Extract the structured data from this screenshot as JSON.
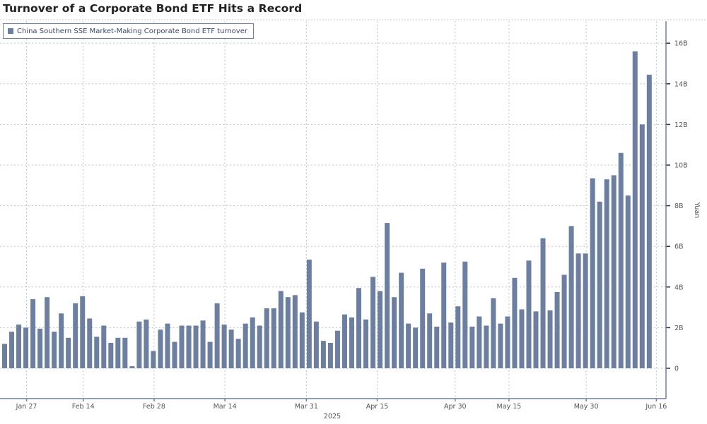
{
  "chart_data": {
    "type": "bar",
    "title": "Turnover of a Corporate Bond ETF Hits a Record",
    "legend": [
      "China Southern SSE Market-Making Corporate Bond ETF turnover"
    ],
    "legend_placement": "top-left",
    "ylabel": "Yuan",
    "xlabel": "2025",
    "y_axis_side": "right",
    "ylim": [
      -1.5,
      17.1
    ],
    "y_ticks": [
      0,
      2,
      4,
      6,
      8,
      10,
      12,
      14,
      16
    ],
    "y_tick_labels": [
      "0",
      "2B",
      "4B",
      "6B",
      "8B",
      "10B",
      "12B",
      "14B",
      "16B"
    ],
    "x_tick_labels": [
      "Jan 27",
      "Feb 14",
      "Feb 28",
      "Mar 14",
      "Mar 31",
      "Apr 15",
      "Apr 30",
      "May 15",
      "May 30",
      "Jun 16"
    ],
    "grid": true,
    "bar_color": "#6d7fa0",
    "unit": "billion yuan",
    "values": [
      1.2,
      1.8,
      2.15,
      2.0,
      3.4,
      1.95,
      3.5,
      1.8,
      2.7,
      1.5,
      3.2,
      3.55,
      2.45,
      1.55,
      2.1,
      1.25,
      1.5,
      1.5,
      0.1,
      2.3,
      2.4,
      0.85,
      1.9,
      2.2,
      1.3,
      2.1,
      2.1,
      2.1,
      2.35,
      1.3,
      3.2,
      2.15,
      1.9,
      1.45,
      2.2,
      2.5,
      2.1,
      2.95,
      2.95,
      3.8,
      3.5,
      3.6,
      2.75,
      5.35,
      2.3,
      1.35,
      1.25,
      1.85,
      2.65,
      2.5,
      3.95,
      2.4,
      4.5,
      3.8,
      7.15,
      3.5,
      4.7,
      2.2,
      2.0,
      4.9,
      2.7,
      2.05,
      5.2,
      2.25,
      3.05,
      5.25,
      2.05,
      2.55,
      2.1,
      3.45,
      2.2,
      2.55,
      4.45,
      2.9,
      5.3,
      2.8,
      6.4,
      2.85,
      3.75,
      4.6,
      7.0,
      5.65,
      5.65,
      9.35,
      8.2,
      9.3,
      9.5,
      10.6,
      8.5,
      15.6,
      12.0,
      14.45
    ]
  }
}
